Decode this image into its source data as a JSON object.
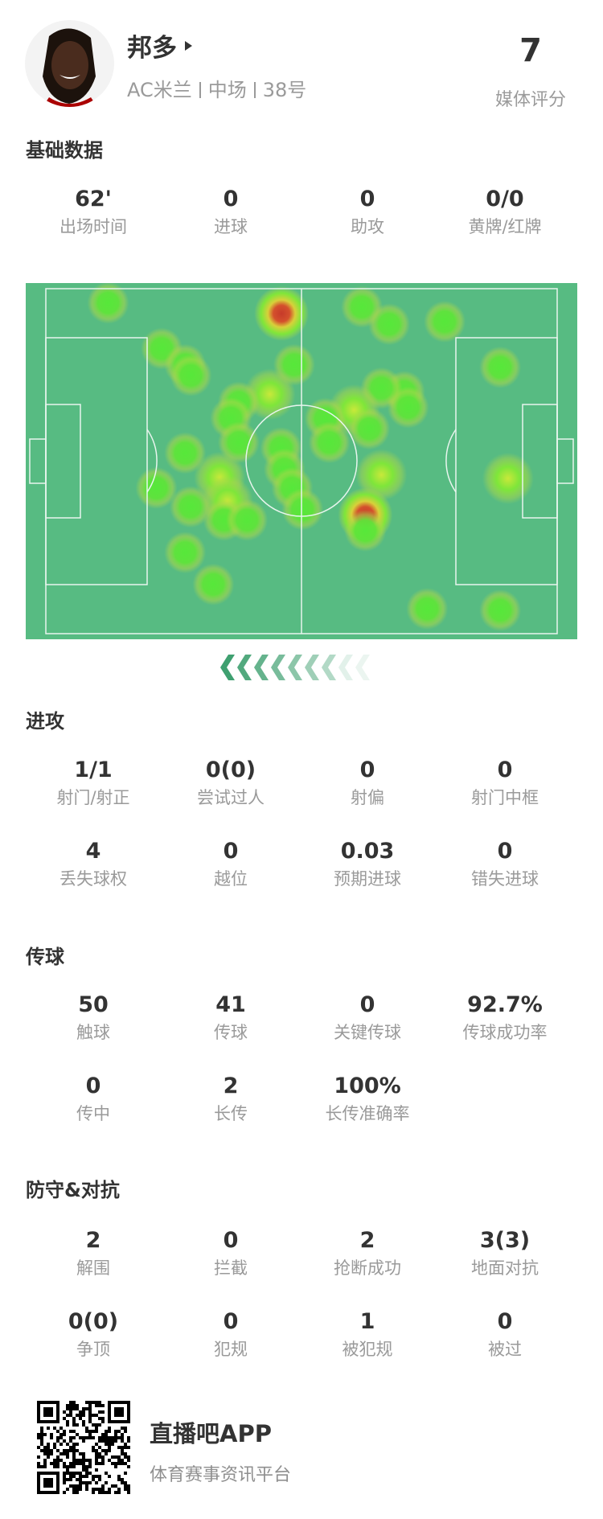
{
  "player": {
    "name": "邦多",
    "team": "AC米兰",
    "position": "中场",
    "number": "38号",
    "rating": "7",
    "rating_label": "媒体评分"
  },
  "sections": {
    "basic": {
      "title": "基础数据",
      "rows": [
        [
          {
            "value": "62'",
            "label": "出场时间"
          },
          {
            "value": "0",
            "label": "进球"
          },
          {
            "value": "0",
            "label": "助攻"
          },
          {
            "value": "0/0",
            "label": "黄牌/红牌"
          }
        ]
      ]
    },
    "attack": {
      "title": "进攻",
      "rows": [
        [
          {
            "value": "1/1",
            "label": "射门/射正"
          },
          {
            "value": "0(0)",
            "label": "尝试过人"
          },
          {
            "value": "0",
            "label": "射偏"
          },
          {
            "value": "0",
            "label": "射门中框"
          }
        ],
        [
          {
            "value": "4",
            "label": "丢失球权"
          },
          {
            "value": "0",
            "label": "越位"
          },
          {
            "value": "0.03",
            "label": "预期进球"
          },
          {
            "value": "0",
            "label": "错失进球"
          }
        ]
      ]
    },
    "passing": {
      "title": "传球",
      "rows": [
        [
          {
            "value": "50",
            "label": "触球"
          },
          {
            "value": "41",
            "label": "传球"
          },
          {
            "value": "0",
            "label": "关键传球"
          },
          {
            "value": "92.7%",
            "label": "传球成功率"
          }
        ],
        [
          {
            "value": "0",
            "label": "传中"
          },
          {
            "value": "2",
            "label": "长传"
          },
          {
            "value": "100%",
            "label": "长传准确率"
          }
        ]
      ]
    },
    "defense": {
      "title": "防守&对抗",
      "rows": [
        [
          {
            "value": "2",
            "label": "解围"
          },
          {
            "value": "0",
            "label": "拦截"
          },
          {
            "value": "2",
            "label": "抢断成功"
          },
          {
            "value": "3(3)",
            "label": "地面对抗"
          }
        ],
        [
          {
            "value": "0(0)",
            "label": "争顶"
          },
          {
            "value": "0",
            "label": "犯规"
          },
          {
            "value": "1",
            "label": "被犯规"
          },
          {
            "value": "0",
            "label": "被过"
          }
        ]
      ]
    }
  },
  "heatmap": {
    "pitch_color": "#57bb82",
    "attack_direction": "left",
    "pitch_size_m": [
      105,
      68
    ],
    "points": [
      [
        12.8,
        2.8,
        1
      ],
      [
        48.4,
        4.9,
        3
      ],
      [
        64.9,
        3.6,
        1
      ],
      [
        70.5,
        7.0,
        1
      ],
      [
        81.9,
        6.5,
        1
      ],
      [
        23.8,
        11.8,
        1
      ],
      [
        28.6,
        15.0,
        1
      ],
      [
        29.8,
        17.1,
        1
      ],
      [
        51.0,
        15.0,
        1
      ],
      [
        93.3,
        15.5,
        1
      ],
      [
        46.0,
        20.8,
        2
      ],
      [
        39.6,
        22.4,
        1
      ],
      [
        38.0,
        25.5,
        1
      ],
      [
        73.6,
        20.3,
        1
      ],
      [
        74.4,
        23.4,
        1
      ],
      [
        68.9,
        19.6,
        1
      ],
      [
        63.3,
        23.9,
        2
      ],
      [
        66.4,
        27.6,
        1
      ],
      [
        57.4,
        25.6,
        1
      ],
      [
        58.2,
        30.3,
        1
      ],
      [
        39.6,
        30.3,
        1
      ],
      [
        28.6,
        32.4,
        1
      ],
      [
        48.3,
        31.4,
        1
      ],
      [
        49.0,
        35.6,
        1
      ],
      [
        50.6,
        39.3,
        1
      ],
      [
        52.7,
        43.5,
        1
      ],
      [
        68.9,
        36.7,
        2
      ],
      [
        65.6,
        44.6,
        3
      ],
      [
        65.6,
        47.7,
        1
      ],
      [
        35.7,
        37.2,
        2
      ],
      [
        37.3,
        41.9,
        2
      ],
      [
        36.6,
        45.6,
        1
      ],
      [
        41.3,
        45.6,
        1
      ],
      [
        22.7,
        39.3,
        1
      ],
      [
        29.7,
        43.0,
        1
      ],
      [
        94.9,
        37.4,
        2
      ],
      [
        28.6,
        52.0,
        1
      ],
      [
        34.4,
        58.3,
        1
      ],
      [
        78.3,
        63.1,
        1
      ],
      [
        93.3,
        63.4,
        1
      ]
    ]
  },
  "footer": {
    "app_name": "直播吧APP",
    "app_tagline": "体育赛事资讯平台"
  },
  "colors": {
    "accent": "#3fa070"
  }
}
